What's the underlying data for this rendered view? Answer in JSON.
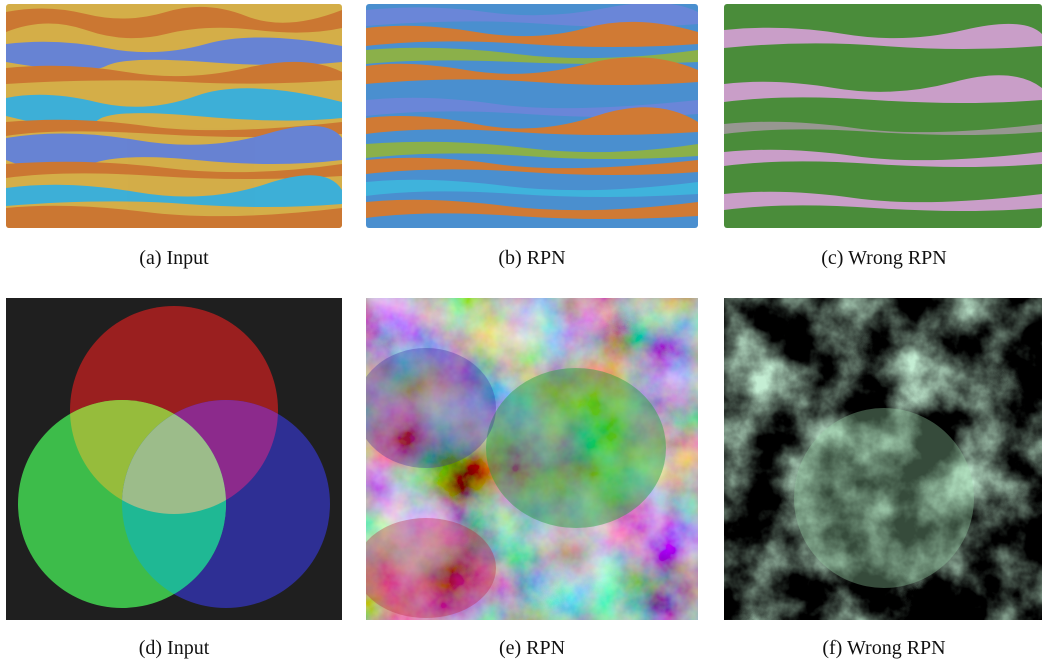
{
  "figure": {
    "row1": {
      "a": {
        "caption": "(a) Input"
      },
      "b": {
        "caption": "(b) RPN"
      },
      "c": {
        "caption": "(c) Wrong RPN"
      }
    },
    "row2": {
      "d": {
        "caption": "(d) Input"
      },
      "e": {
        "caption": "(e) RPN"
      },
      "f": {
        "caption": "(f) Wrong RPN"
      }
    }
  },
  "colors": {
    "stripe_yellow": "#d9b24a",
    "stripe_orange": "#d07a34",
    "stripe_blue": "#6a86d8",
    "stripe_cyan": "#3fb3dc",
    "wrong_green": "#4a8c3a",
    "wrong_pink": "#d7a0d8",
    "venn_bg": "#1f1f1f",
    "venn_red": "#9a1f1f",
    "venn_green": "#3dbc4a",
    "venn_blue": "#2e2f94"
  }
}
